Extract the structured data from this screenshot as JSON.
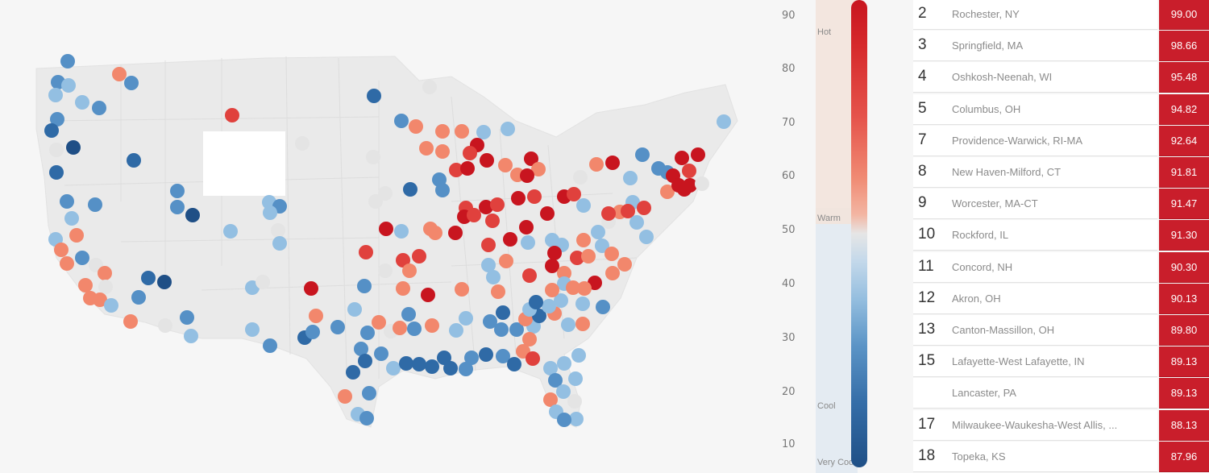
{
  "colors": {
    "very_hot": "#c8151f",
    "hot": "#e0413d",
    "warm": "#f2876c",
    "neutral": "#e4e4e4",
    "cool_light": "#93bfe2",
    "cool": "#5590c6",
    "very_cool": "#2f6aa6",
    "very_cool_dark": "#1f4f86",
    "score_bg": "#c91e2b",
    "map_fill": "#eaeaea"
  },
  "legend": {
    "ticks": [
      "90",
      "80",
      "70",
      "60",
      "50",
      "40",
      "30",
      "20",
      "10"
    ],
    "bands": [
      {
        "label": "Hot"
      },
      {
        "label": "Warm"
      },
      {
        "label": "Cool"
      },
      {
        "label": "Very Cool"
      }
    ]
  },
  "rankings": [
    {
      "rank": "2",
      "city": "Rochester, NY",
      "score": "99.00"
    },
    {
      "rank": "3",
      "city": "Springfield, MA",
      "score": "98.66"
    },
    {
      "rank": "4",
      "city": "Oshkosh-Neenah, WI",
      "score": "95.48"
    },
    {
      "rank": "5",
      "city": "Columbus, OH",
      "score": "94.82"
    },
    {
      "rank": "7",
      "city": "Providence-Warwick, RI-MA",
      "score": "92.64"
    },
    {
      "rank": "8",
      "city": "New Haven-Milford, CT",
      "score": "91.81"
    },
    {
      "rank": "9",
      "city": "Worcester, MA-CT",
      "score": "91.47"
    },
    {
      "rank": "10",
      "city": "Rockford, IL",
      "score": "91.30"
    },
    {
      "rank": "11",
      "city": "Concord, NH",
      "score": "90.30"
    },
    {
      "rank": "12",
      "city": "Akron, OH",
      "score": "90.13"
    },
    {
      "rank": "13",
      "city": "Canton-Massillon, OH",
      "score": "89.80"
    },
    {
      "rank": "15",
      "city": "Lafayette-West Lafayette, IN",
      "score": "89.13"
    },
    {
      "rank": "",
      "city": "Lancaster, PA",
      "score": "89.13"
    },
    {
      "rank": "17",
      "city": "Milwaukee-Waukesha-West Allis, ...",
      "score": "88.13"
    },
    {
      "rank": "18",
      "city": "Topeka, KS",
      "score": "87.96"
    }
  ]
}
